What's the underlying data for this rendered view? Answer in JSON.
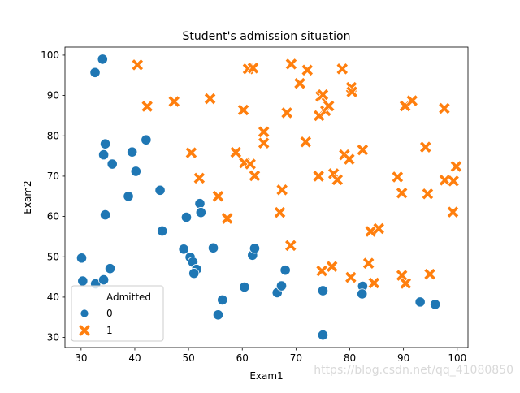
{
  "chart_data": {
    "type": "scatter",
    "title": "Student's admission situation",
    "xlabel": "Exam1",
    "ylabel": "Exam2",
    "xlim": [
      27,
      102
    ],
    "ylim": [
      27.5,
      102
    ],
    "xticks": [
      30,
      40,
      50,
      60,
      70,
      80,
      90,
      100
    ],
    "yticks": [
      30,
      40,
      50,
      60,
      70,
      80,
      90,
      100
    ],
    "grid": false,
    "legend": {
      "title": "Admitted",
      "position": "lower-left"
    },
    "series": [
      {
        "name": "0",
        "marker": "circle",
        "color": "#1f77b4",
        "points": [
          [
            34.0,
            99.0
          ],
          [
            32.6,
            95.7
          ],
          [
            34.5,
            78.0
          ],
          [
            34.2,
            75.3
          ],
          [
            35.8,
            73.0
          ],
          [
            39.5,
            76.0
          ],
          [
            40.2,
            71.2
          ],
          [
            42.1,
            79.0
          ],
          [
            38.8,
            65.0
          ],
          [
            34.5,
            60.4
          ],
          [
            44.7,
            66.5
          ],
          [
            52.1,
            63.2
          ],
          [
            52.3,
            61.0
          ],
          [
            49.6,
            59.8
          ],
          [
            45.1,
            56.4
          ],
          [
            30.1,
            49.7
          ],
          [
            35.4,
            47.1
          ],
          [
            49.1,
            51.9
          ],
          [
            50.3,
            49.9
          ],
          [
            50.8,
            48.7
          ],
          [
            51.5,
            46.9
          ],
          [
            51.0,
            45.9
          ],
          [
            54.6,
            52.2
          ],
          [
            30.3,
            44.0
          ],
          [
            32.7,
            43.3
          ],
          [
            34.2,
            44.3
          ],
          [
            60.4,
            42.5
          ],
          [
            61.9,
            50.4
          ],
          [
            62.3,
            52.1
          ],
          [
            66.5,
            41.1
          ],
          [
            67.3,
            42.8
          ],
          [
            68.0,
            46.7
          ],
          [
            56.3,
            39.3
          ],
          [
            55.5,
            35.6
          ],
          [
            75.0,
            41.6
          ],
          [
            82.4,
            42.7
          ],
          [
            82.3,
            40.8
          ],
          [
            93.1,
            38.8
          ],
          [
            95.9,
            38.2
          ],
          [
            75.0,
            30.6
          ]
        ]
      },
      {
        "name": "1",
        "marker": "x",
        "color": "#ff7f0e",
        "points": [
          [
            40.5,
            97.6
          ],
          [
            42.3,
            87.3
          ],
          [
            47.3,
            88.5
          ],
          [
            54.0,
            89.2
          ],
          [
            50.5,
            75.8
          ],
          [
            52.0,
            69.5
          ],
          [
            55.5,
            65.0
          ],
          [
            57.2,
            59.5
          ],
          [
            58.8,
            75.9
          ],
          [
            60.4,
            73.3
          ],
          [
            60.2,
            86.4
          ],
          [
            61.1,
            96.6
          ],
          [
            62.0,
            96.8
          ],
          [
            61.5,
            73.0
          ],
          [
            62.3,
            70.1
          ],
          [
            64.0,
            81.0
          ],
          [
            64.0,
            78.2
          ],
          [
            67.0,
            61.0
          ],
          [
            67.4,
            66.6
          ],
          [
            68.3,
            85.7
          ],
          [
            69.1,
            97.8
          ],
          [
            69.0,
            52.8
          ],
          [
            70.7,
            93.0
          ],
          [
            72.1,
            96.3
          ],
          [
            71.8,
            78.5
          ],
          [
            74.3,
            85.0
          ],
          [
            74.6,
            89.8
          ],
          [
            75.0,
            90.2
          ],
          [
            75.5,
            86.2
          ],
          [
            76.1,
            87.4
          ],
          [
            74.2,
            70.0
          ],
          [
            74.8,
            46.5
          ],
          [
            76.7,
            47.6
          ],
          [
            77.0,
            70.6
          ],
          [
            77.7,
            69.1
          ],
          [
            78.6,
            96.6
          ],
          [
            79.0,
            75.3
          ],
          [
            79.9,
            74.2
          ],
          [
            80.3,
            92.0
          ],
          [
            80.4,
            90.9
          ],
          [
            80.2,
            44.9
          ],
          [
            82.4,
            76.5
          ],
          [
            83.5,
            48.4
          ],
          [
            83.9,
            56.3
          ],
          [
            84.5,
            43.5
          ],
          [
            85.4,
            57.0
          ],
          [
            88.9,
            69.8
          ],
          [
            89.7,
            65.8
          ],
          [
            89.7,
            45.4
          ],
          [
            90.3,
            87.4
          ],
          [
            90.4,
            43.4
          ],
          [
            91.6,
            88.7
          ],
          [
            94.1,
            77.2
          ],
          [
            94.5,
            65.6
          ],
          [
            94.9,
            45.7
          ],
          [
            97.6,
            86.8
          ],
          [
            97.7,
            69.0
          ],
          [
            99.3,
            68.8
          ],
          [
            99.2,
            61.1
          ],
          [
            99.8,
            72.4
          ]
        ]
      }
    ]
  },
  "watermark": "https://blog.csdn.net/qq_41080850"
}
